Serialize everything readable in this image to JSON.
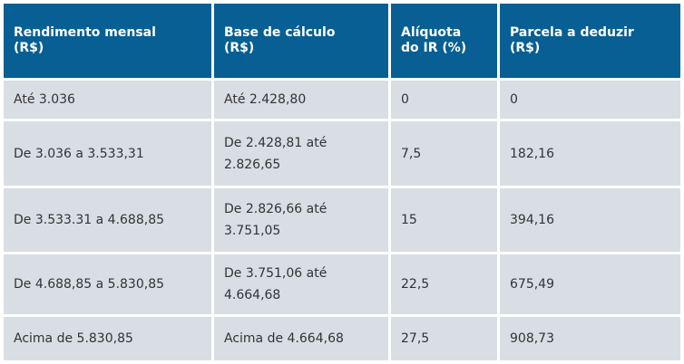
{
  "table": {
    "header": [
      "Rendimento mensal (R$)",
      "Base de cálculo (R$)",
      "Alíquota do IR (%)",
      "Parcela a deduzir (R$)"
    ],
    "rows": [
      [
        "Até 3.036",
        "Até 2.428,80",
        "0",
        "0"
      ],
      [
        "De 3.036 a 3.533,31",
        "De 2.428,81 até 2.826,65",
        "7,5",
        "182,16"
      ],
      [
        "De 3.533.31 a 4.688,85",
        "De 2.826,66 até 3.751,05",
        "15",
        "394,16"
      ],
      [
        "De 4.688,85 a 5.830,85",
        "De 3.751,06 até 4.664,68",
        "22,5",
        "675,49"
      ],
      [
        "Acima de 5.830,85",
        "Acima de 4.664,68",
        "27,5",
        "908,73"
      ]
    ]
  }
}
